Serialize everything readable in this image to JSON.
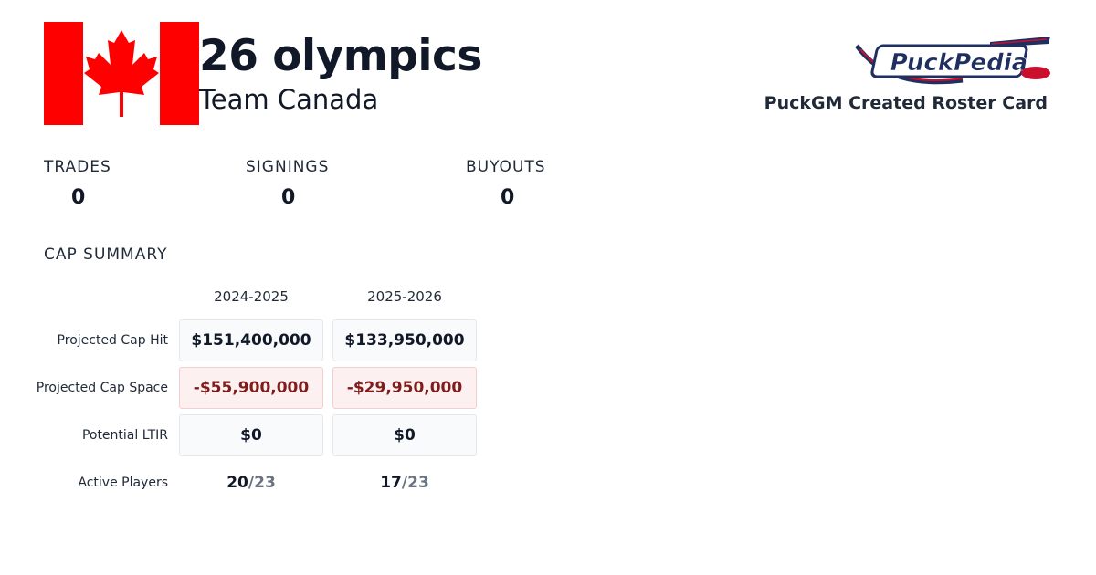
{
  "header": {
    "title": "26 olympics",
    "team": "Team Canada",
    "brand": "PuckPedia",
    "card_label": "PuckGM Created Roster Card"
  },
  "flag": {
    "country": "Canada",
    "red": "#ff0000",
    "white": "#ffffff"
  },
  "stats": [
    {
      "label": "TRADES",
      "value": "0"
    },
    {
      "label": "SIGNINGS",
      "value": "0"
    },
    {
      "label": "BUYOUTS",
      "value": "0"
    }
  ],
  "cap_summary": {
    "title": "CAP SUMMARY",
    "seasons": [
      "2024-2025",
      "2025-2026"
    ],
    "rows": {
      "cap_hit": {
        "label": "Projected Cap Hit",
        "values": [
          "$151,400,000",
          "$133,950,000"
        ]
      },
      "cap_space": {
        "label": "Projected Cap Space",
        "values": [
          "-$55,900,000",
          "-$29,950,000"
        ]
      },
      "ltir": {
        "label": "Potential LTIR",
        "values": [
          "$0",
          "$0"
        ]
      },
      "active_players": {
        "label": "Active Players",
        "values": [
          {
            "active": "20",
            "max": "23"
          },
          {
            "active": "17",
            "max": "23"
          }
        ],
        "separator": "/"
      }
    }
  },
  "colors": {
    "negative_text": "#7f1d1d",
    "negative_bg": "#fdf0f0",
    "cell_bg": "#f8fafc",
    "brand_navy": "#1f2f5f",
    "brand_red": "#c8102e"
  }
}
